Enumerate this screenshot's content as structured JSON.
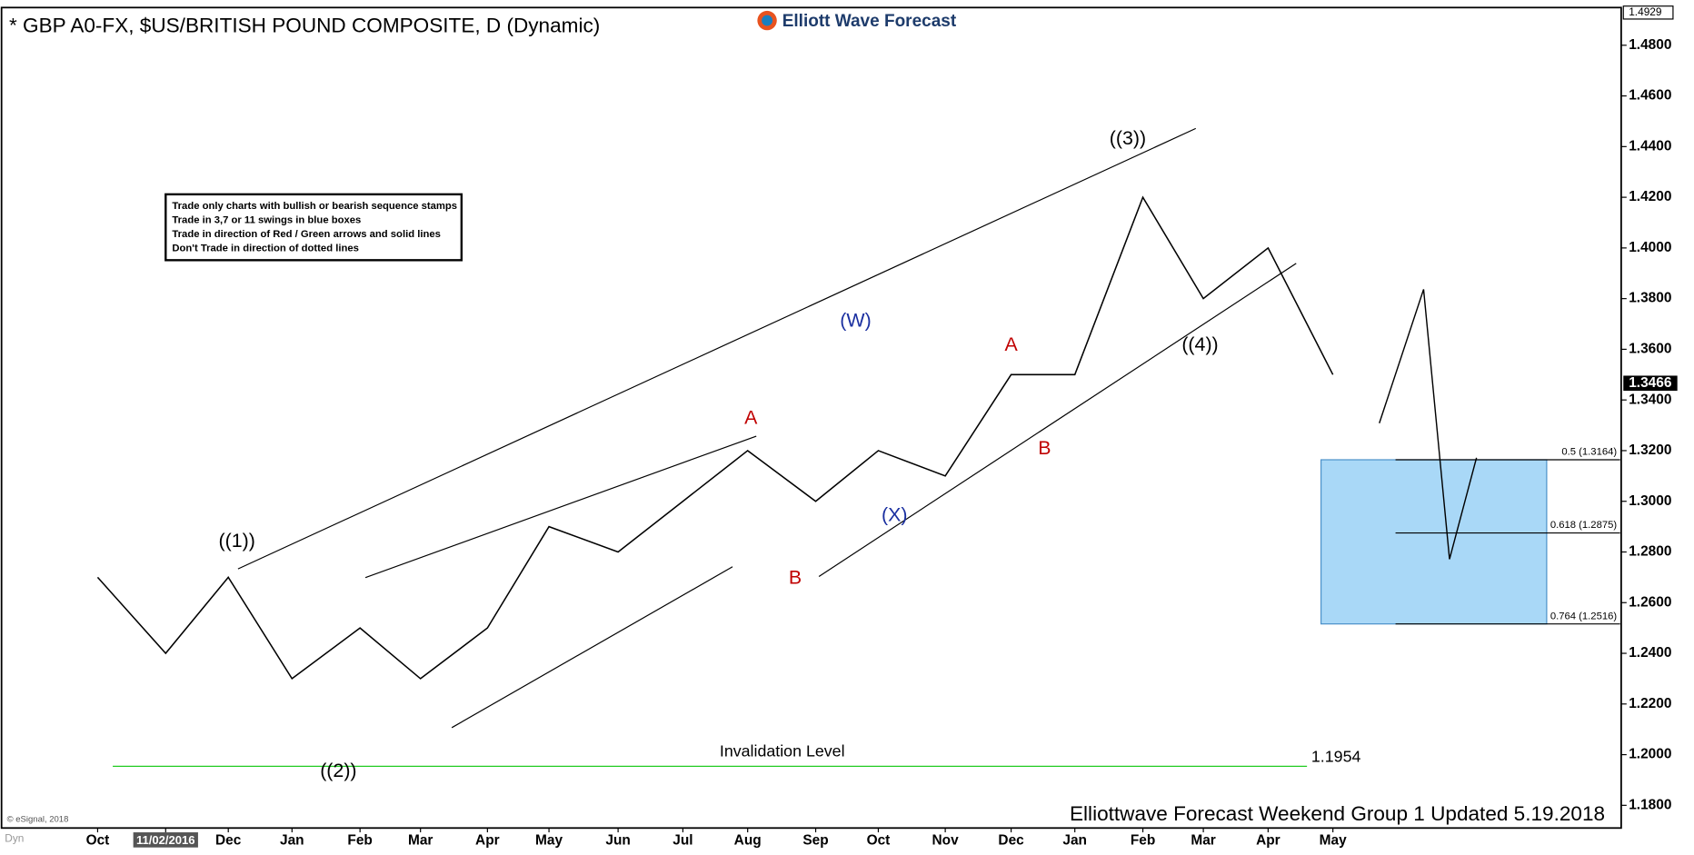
{
  "chart_data": {
    "type": "line",
    "title": "* GBP A0-FX, $US/BRITISH POUND COMPOSITE, D (Dynamic)",
    "logo": "Elliott Wave Forecast",
    "categories": [
      "Oct",
      "11/02/2016",
      "Dec",
      "Jan",
      "Feb",
      "Mar",
      "Apr",
      "May",
      "Jun",
      "Jul",
      "Aug",
      "Sep",
      "Oct",
      "Nov",
      "Dec",
      "Jan",
      "Feb",
      "Mar",
      "Apr",
      "May"
    ],
    "series": [
      {
        "name": "GBPUSD",
        "color": "#000000",
        "values": [
          1.27,
          1.24,
          1.27,
          1.23,
          1.25,
          1.23,
          1.25,
          1.29,
          1.28,
          1.3,
          1.32,
          1.3,
          1.32,
          1.31,
          1.35,
          1.35,
          1.42,
          1.38,
          1.4,
          1.35
        ]
      }
    ],
    "ylim": [
      1.1719,
      1.4936
    ],
    "yticks": [
      {
        "value": 1.18,
        "label": "1.1800"
      },
      {
        "value": 1.2,
        "label": "1.2000"
      },
      {
        "value": 1.22,
        "label": "1.2200"
      },
      {
        "value": 1.24,
        "label": "1.2400"
      },
      {
        "value": 1.26,
        "label": "1.2600"
      },
      {
        "value": 1.28,
        "label": "1.2800"
      },
      {
        "value": 1.3,
        "label": "1.3000"
      },
      {
        "value": 1.32,
        "label": "1.3200"
      },
      {
        "value": 1.34,
        "label": "1.3400"
      },
      {
        "value": 1.36,
        "label": "1.3600"
      },
      {
        "value": 1.38,
        "label": "1.3800"
      },
      {
        "value": 1.4,
        "label": "1.4000"
      },
      {
        "value": 1.42,
        "label": "1.4200"
      },
      {
        "value": 1.44,
        "label": "1.4400"
      },
      {
        "value": 1.46,
        "label": "1.4600"
      },
      {
        "value": 1.48,
        "label": "1.4800"
      }
    ],
    "top_price": 1.4929,
    "last_price": 1.3466,
    "rules_box": [
      "Trade only charts with bullish or bearish sequence stamps",
      "Trade in 3,7 or 11 swings in blue boxes",
      "Trade in direction of Red / Green arrows and solid lines",
      "Don't Trade in direction of dotted lines"
    ],
    "annotations": [
      {
        "text": "((1))",
        "color": "#000000"
      },
      {
        "text": "((2))",
        "color": "#000000"
      },
      {
        "text": "((3))",
        "color": "#000000"
      },
      {
        "text": "((4))",
        "color": "#000000"
      },
      {
        "text": "A",
        "color": "#c00000"
      },
      {
        "text": "B",
        "color": "#c00000"
      },
      {
        "text": "(W)",
        "color": "#1a2fa0"
      },
      {
        "text": "(X)",
        "color": "#1a2fa0"
      },
      {
        "text": "A",
        "color": "#c00000"
      },
      {
        "text": "B",
        "color": "#c00000"
      }
    ],
    "invalidation": {
      "label": "Invalidation Level",
      "value": 1.1954,
      "color": "#22cc22"
    },
    "fib_levels": [
      {
        "value": 1.3164,
        "label": "0.5 (1.3164)"
      },
      {
        "value": 1.2875,
        "label": "0.618 (1.2875)"
      },
      {
        "value": 1.2516,
        "label": "0.764 (1.2516)"
      }
    ],
    "box_color": "#a9d8f7",
    "footer": "Elliottwave Forecast Weekend Group 1 Updated 5.19.2018",
    "copyright": "© eSignal, 2018",
    "mode": "Dyn"
  }
}
